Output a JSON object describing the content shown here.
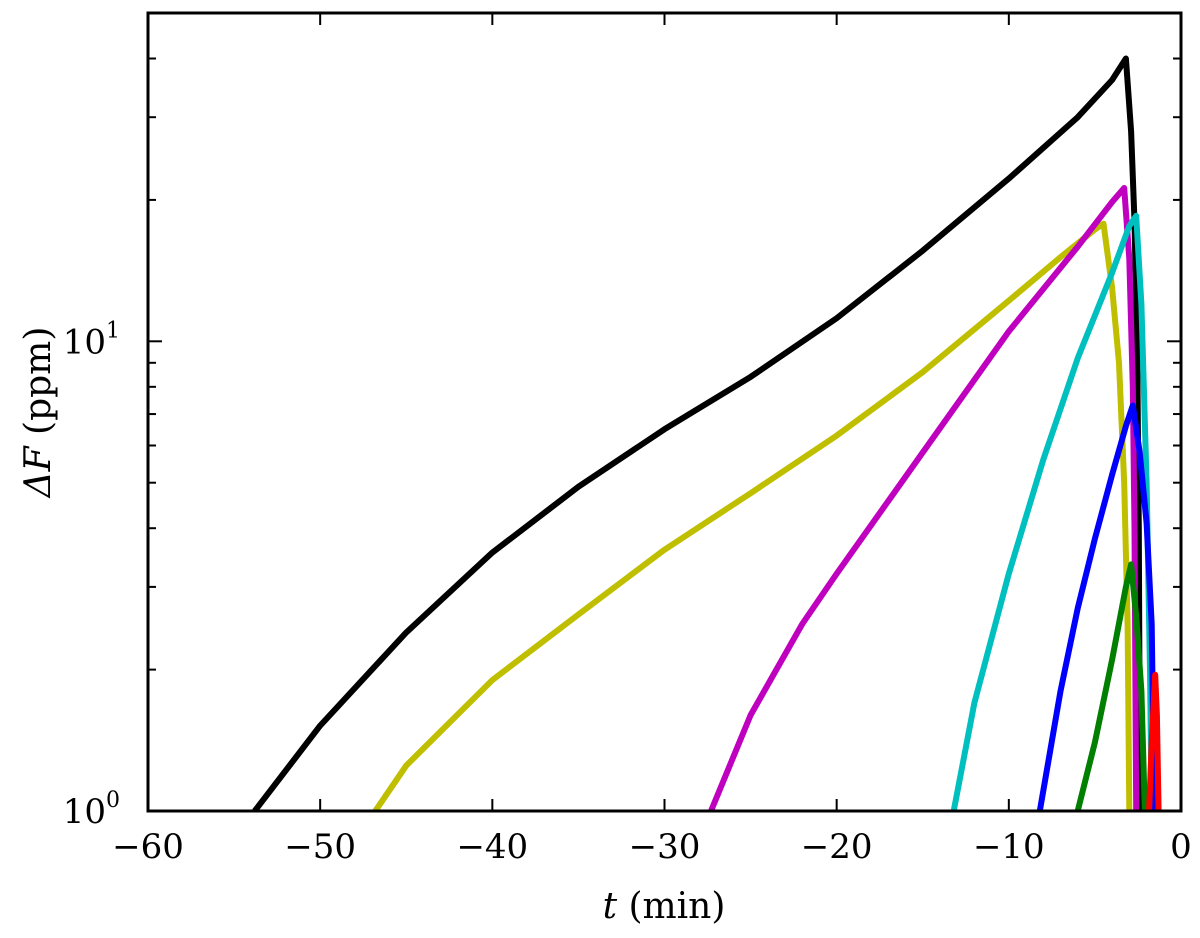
{
  "chart_data": {
    "type": "line",
    "xlabel": {
      "var": "t",
      "rest": " (min)"
    },
    "ylabel": {
      "var": "ΔF",
      "rest": " (ppm)"
    },
    "xlim": [
      -60,
      0
    ],
    "ylim": [
      1,
      50
    ],
    "yscale": "log",
    "grid": false,
    "x_ticks": [
      -60,
      -50,
      -40,
      -30,
      -20,
      -10,
      0
    ],
    "x_tick_labels": [
      "−60",
      "−50",
      "−40",
      "−30",
      "−20",
      "−10",
      "0"
    ],
    "y_major_ticks": [
      {
        "value": 1,
        "base": "10",
        "exp": "0"
      },
      {
        "value": 10,
        "base": "10",
        "exp": "1"
      }
    ],
    "y_minor_ticks": [
      2,
      3,
      4,
      5,
      6,
      7,
      8,
      9,
      20,
      30,
      40
    ],
    "series": [
      {
        "color": "#000000",
        "points": [
          [
            -53.8,
            1.0
          ],
          [
            -50,
            1.52
          ],
          [
            -45,
            2.4
          ],
          [
            -40,
            3.55
          ],
          [
            -35,
            4.9
          ],
          [
            -30,
            6.5
          ],
          [
            -25,
            8.4
          ],
          [
            -20,
            11.2
          ],
          [
            -15,
            15.6
          ],
          [
            -10,
            22.2
          ],
          [
            -6,
            30.0
          ],
          [
            -4,
            36.0
          ],
          [
            -3.2,
            40.0
          ],
          [
            -2.9,
            28.0
          ],
          [
            -2.7,
            18.0
          ],
          [
            -2.55,
            10.0
          ],
          [
            -2.45,
            4.0
          ],
          [
            -2.38,
            1.0
          ]
        ]
      },
      {
        "color": "#bfbf00",
        "points": [
          [
            -46.8,
            1.0
          ],
          [
            -45,
            1.25
          ],
          [
            -40,
            1.9
          ],
          [
            -35,
            2.62
          ],
          [
            -30,
            3.6
          ],
          [
            -25,
            4.75
          ],
          [
            -20,
            6.3
          ],
          [
            -15,
            8.6
          ],
          [
            -10,
            12.2
          ],
          [
            -7,
            15.1
          ],
          [
            -5,
            17.3
          ],
          [
            -4.5,
            17.8
          ],
          [
            -4.0,
            13.0
          ],
          [
            -3.6,
            9.0
          ],
          [
            -3.3,
            5.0
          ],
          [
            -3.1,
            2.5
          ],
          [
            -3.0,
            1.0
          ]
        ]
      },
      {
        "color": "#bf00bf",
        "points": [
          [
            -27.3,
            1.0
          ],
          [
            -25,
            1.6
          ],
          [
            -22,
            2.5
          ],
          [
            -20,
            3.2
          ],
          [
            -15,
            5.8
          ],
          [
            -10,
            10.5
          ],
          [
            -6,
            15.9
          ],
          [
            -4,
            19.8
          ],
          [
            -3.3,
            21.2
          ],
          [
            -3.0,
            15.0
          ],
          [
            -2.8,
            8.0
          ],
          [
            -2.7,
            4.0
          ],
          [
            -2.6,
            1.0
          ]
        ]
      },
      {
        "color": "#00bfbf",
        "points": [
          [
            -13.2,
            1.0
          ],
          [
            -12,
            1.7
          ],
          [
            -10,
            3.2
          ],
          [
            -8,
            5.6
          ],
          [
            -6,
            9.2
          ],
          [
            -4,
            14.0
          ],
          [
            -3.0,
            17.6
          ],
          [
            -2.6,
            18.5
          ],
          [
            -2.3,
            12.0
          ],
          [
            -2.0,
            5.0
          ],
          [
            -1.8,
            2.0
          ],
          [
            -1.7,
            1.0
          ]
        ]
      },
      {
        "color": "#0000ff",
        "points": [
          [
            -8.2,
            1.0
          ],
          [
            -7,
            1.8
          ],
          [
            -6,
            2.7
          ],
          [
            -5,
            3.8
          ],
          [
            -4,
            5.2
          ],
          [
            -3.2,
            6.6
          ],
          [
            -2.8,
            7.3
          ],
          [
            -2.4,
            5.8
          ],
          [
            -2.0,
            4.1
          ],
          [
            -1.7,
            2.5
          ],
          [
            -1.55,
            1.0
          ]
        ]
      },
      {
        "color": "#007f00",
        "points": [
          [
            -6.0,
            1.0
          ],
          [
            -5,
            1.4
          ],
          [
            -4,
            2.1
          ],
          [
            -3.2,
            3.0
          ],
          [
            -2.9,
            3.35
          ],
          [
            -2.6,
            2.6
          ],
          [
            -2.3,
            1.8
          ],
          [
            -2.1,
            1.0
          ]
        ]
      },
      {
        "color": "#ff0000",
        "points": [
          [
            -1.85,
            1.0
          ],
          [
            -1.7,
            1.4
          ],
          [
            -1.5,
            1.95
          ],
          [
            -1.4,
            1.6
          ],
          [
            -1.3,
            1.0
          ]
        ]
      }
    ]
  }
}
